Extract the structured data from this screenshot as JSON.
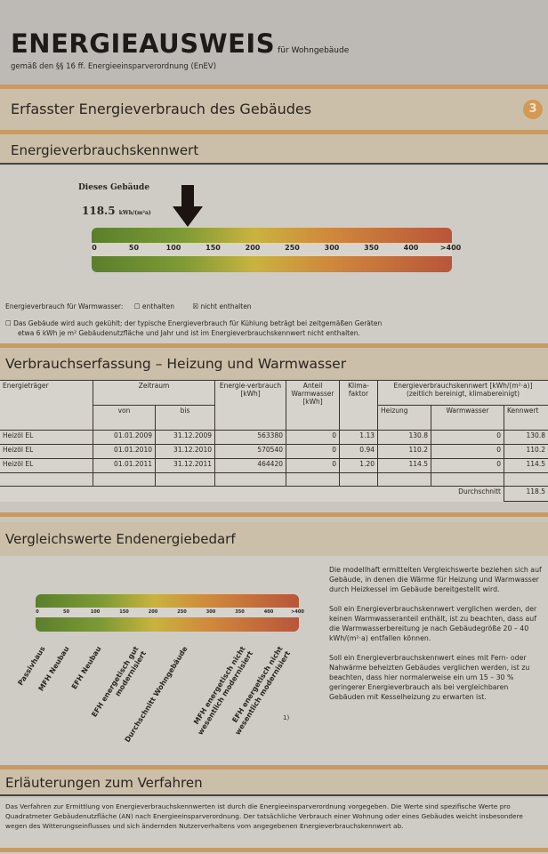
{
  "header": {
    "title": "ENERGIEAUSWEIS",
    "title_suffix": "für Wohngebäude",
    "subtitle": "gemäß den §§ 16 ff. Energieeinsparverordnung (EnEV)"
  },
  "section_main": {
    "title": "Erfasster Energieverbrauch des Gebäudes",
    "page_badge": "3"
  },
  "kennwert": {
    "title": "Energieverbrauchskennwert",
    "building_label": "Dieses Gebäude",
    "value": "118.5",
    "unit": "kWh/(m²a)",
    "value_number": 118.5,
    "ticks": [
      "0",
      "50",
      "100",
      "150",
      "200",
      "250",
      "300",
      "350",
      "400",
      ">400"
    ],
    "warmwater_label": "Energieverbrauch für Warmwasser:",
    "warmwater_options": [
      {
        "label": "enthalten",
        "checked": false
      },
      {
        "label": "nicht enthalten",
        "checked": true
      }
    ],
    "cooling_note_line1": "Das Gebäude wird auch gekühlt; der typische Energieverbrauch für Kühlung beträgt bei zeitgemäßen Geräten",
    "cooling_note_line2": "etwa 6 kWh je m² Gebäudenutzfläche und Jahr und ist im Energieverbrauchskennwert nicht enthalten.",
    "cooling_checked": false,
    "scale_colors": [
      "#5a7f2c",
      "#c9b33f",
      "#b9553a"
    ]
  },
  "verbrauch": {
    "title": "Verbrauchserfassung – Heizung und Warmwasser",
    "headers": {
      "traeger": "Energieträger",
      "zeitraum": "Zeitraum",
      "von": "von",
      "bis": "bis",
      "verbrauch": "Energie-verbrauch [kWh]",
      "anteil": "Anteil Warmwasser [kWh]",
      "klima": "Klima-faktor",
      "kennwert_group": "Energieverbrauchskennwert [kWh/(m²·a)] (zeitlich bereinigt, klimabereinigt)",
      "heizung": "Heizung",
      "warmwasser": "Warmwasser",
      "kennwert": "Kennwert"
    },
    "rows": [
      [
        "Heizöl EL",
        "01.01.2009",
        "31.12.2009",
        "563380",
        "0",
        "1.13",
        "130.8",
        "0",
        "130.8"
      ],
      [
        "Heizöl EL",
        "01.01.2010",
        "31.12.2010",
        "570540",
        "0",
        "0.94",
        "110.2",
        "0",
        "110.2"
      ],
      [
        "Heizöl EL",
        "01.01.2011",
        "31.12.2011",
        "464420",
        "0",
        "1.20",
        "114.5",
        "0",
        "114.5"
      ]
    ],
    "average_label": "Durchschnitt",
    "average_value": "118.5"
  },
  "vergleich": {
    "title": "Vergleichswerte Endenergiebedarf",
    "ticks": [
      "0",
      "50",
      "100",
      "150",
      "200",
      "250",
      "300",
      "350",
      "400",
      ">400"
    ],
    "labels": [
      "Passivhaus",
      "MFH Neubau",
      "EFH Neubau",
      "EFH energetisch gut modernisiert",
      "Durchschnitt Wohngebäude",
      "MFH energetisch nicht wesentlich modernisiert",
      "EFH energetisch nicht wesentlich modernisiert"
    ],
    "footnote": "1)",
    "para1": "Die modellhaft ermittelten Vergleichswerte beziehen sich auf Gebäude, in denen die Wärme für Heizung und Warmwasser durch Heizkessel im Gebäude bereitgestellt wird.",
    "para2": "Soll ein Energieverbrauchskennwert verglichen werden, der keinen Warmwasseranteil enthält, ist zu beachten, dass auf die Warmwasserbereitung je nach Gebäudegröße 20 – 40 kWh/(m²·a) entfallen können.",
    "para3": "Soll ein Energieverbrauchskennwert eines mit Fern- oder Nahwärme beheizten Gebäudes verglichen werden, ist zu beachten, dass hier normalerweise ein um 15 – 30 % geringerer Energieverbrauch als bei vergleichbaren Gebäuden mit Kesselheizung zu erwarten ist."
  },
  "erlaeuterungen": {
    "title": "Erläuterungen zum Verfahren",
    "text": "Das Verfahren zur Ermittlung von Energieverbrauchskennwerten ist durch die Energieeinsparverordnung vorgegeben. Die Werte sind spezifische Werte pro Quadratmeter Gebäudenutzfläche (AN) nach Energieeinsparverordnung. Der tatsächliche Verbrauch einer Wohnung oder eines Gebäudes weicht insbesondere wegen des Witterungseinflusses und sich ändernden Nutzerverhaltens vom angegebenen Energieverbrauchskennwert ab."
  }
}
